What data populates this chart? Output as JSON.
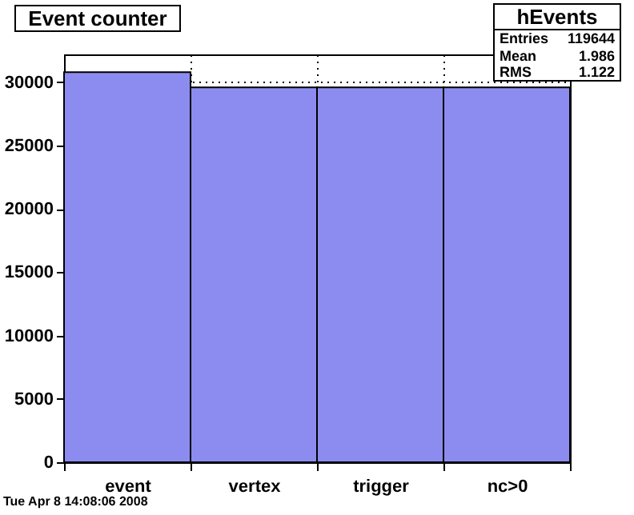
{
  "chart_data": {
    "type": "bar",
    "title": "Event counter",
    "categories": [
      "event",
      "vertex",
      "trigger",
      "nc>0"
    ],
    "values": [
      30800,
      29600,
      29600,
      29600
    ],
    "color": "#8c8cf0",
    "ylim": [
      0,
      32200
    ],
    "yticks": [
      0,
      5000,
      10000,
      15000,
      20000,
      25000,
      30000
    ],
    "grid": true,
    "annotations": [
      "hEvents",
      "Entries 119644",
      "Mean 1.986",
      "RMS 1.122",
      "Tue Apr  8 14:08:06 2008"
    ]
  }
}
